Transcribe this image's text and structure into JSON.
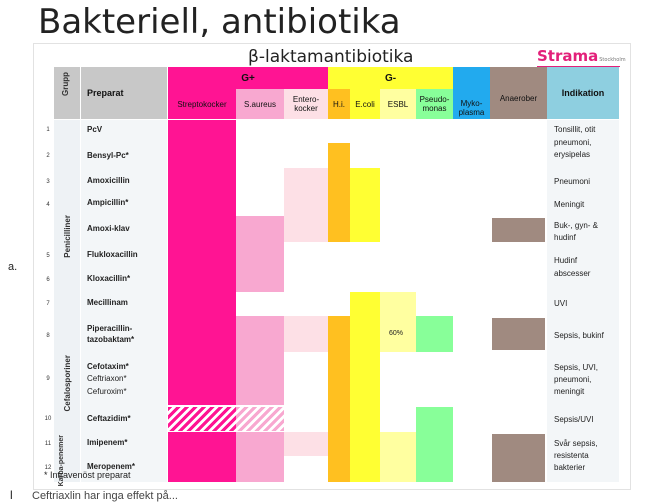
{
  "slide": {
    "title": "Bakteriell, antibiotika",
    "side_letter": "a.",
    "footnote": "* Intravenöst preparat",
    "bottom_note": "Ceftriaxlin har inga effekt på..."
  },
  "panel": {
    "title": "β-laktamantibiotika",
    "logo": "Strama",
    "logo_sub": "Stockholm"
  },
  "header": {
    "grupp": "Grupp",
    "preparat": "Preparat",
    "gplus": "G+",
    "gminus": "G-",
    "myko": "Myko-plasma",
    "anaerober": "Anaerober",
    "indikation": "Indikation",
    "sub": [
      "Streptokocker",
      "S.aureus",
      "Entero-kocker",
      "H.i.",
      "E.coli",
      "ESBL",
      "Pseudo-monas"
    ]
  },
  "groups": [
    "Penicilliner",
    "Cefalosporiner",
    "Karba-penemer"
  ],
  "rows": [
    {
      "num": "1",
      "drug": [
        "PcV"
      ],
      "indication": [
        "Tonsillit, otit"
      ]
    },
    {
      "num": "2",
      "drug": [
        "Bensyl-Pc*"
      ],
      "indication": [
        "pneumoni,",
        "erysipelas"
      ]
    },
    {
      "num": "3",
      "drug": [
        "Amoxicillin"
      ],
      "indication": [
        "Pneumoni"
      ]
    },
    {
      "num": "4",
      "drug": [
        "Ampicillin*"
      ],
      "indication": [
        "Meningit"
      ]
    },
    {
      "num": "",
      "drug": [
        "Amoxi-klav"
      ],
      "indication": [
        "Buk-, gyn- &",
        "hudinf"
      ]
    },
    {
      "num": "5",
      "drug": [
        "Flukloxacillin"
      ],
      "indication": [
        "Hudinf"
      ]
    },
    {
      "num": "6",
      "drug": [
        "Kloxacillin*"
      ],
      "indication": [
        "abscesser"
      ]
    },
    {
      "num": "7",
      "drug": [
        "Mecillinam"
      ],
      "indication": [
        "UVI"
      ]
    },
    {
      "num": "8",
      "drug": [
        "Piperacillin-",
        "tazobaktam*"
      ],
      "indication": [
        "Sepsis, bukinf"
      ]
    },
    {
      "num": "9",
      "drug": [
        "Cefotaxim*",
        "Ceftriaxon*",
        "Cefuroxim*"
      ],
      "indication": [
        "Sepsis, UVI,",
        "pneumoni,",
        "meningit"
      ]
    },
    {
      "num": "10",
      "drug": [
        "Ceftazidim*"
      ],
      "indication": [
        "Sepsis/UVI"
      ]
    },
    {
      "num": "11",
      "drug": [
        "Imipenem*"
      ],
      "indication": [
        "Svår sepsis,",
        "resistenta"
      ]
    },
    {
      "num": "12",
      "drug": [
        "Meropenem*"
      ],
      "indication": [
        "bakterier"
      ]
    }
  ],
  "esbl_note": "60%",
  "colors": {
    "magenta": "#ff1493",
    "light_pink": "#f8a8d0",
    "pale_pink": "#fde0e6",
    "orange": "#ffc020",
    "yellow": "#ffff33",
    "pale_yellow": "#ffffa0",
    "green": "#88ff99",
    "blue": "#22aaee",
    "brown": "#a08a80",
    "teal_header": "#8ecfe0",
    "grey": "#c8c8c8"
  }
}
